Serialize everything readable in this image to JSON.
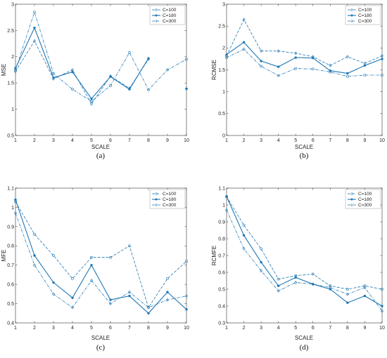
{
  "chart_data": [
    {
      "type": "line",
      "panel_label": "(a)",
      "xlabel": "SCALE",
      "ylabel": "MSE",
      "xlim": [
        1,
        10
      ],
      "ylim": [
        0.5,
        3
      ],
      "yticks": [
        "0.5",
        "1",
        "1.5",
        "2",
        "2.5",
        "3"
      ],
      "xticks": [
        "1",
        "2",
        "3",
        "4",
        "5",
        "6",
        "7",
        "8",
        "9",
        "10"
      ],
      "legend": "top-right",
      "series": [
        {
          "name": "C=100",
          "style": "dashdot",
          "x": [
            1,
            2,
            3,
            4,
            5,
            6,
            7,
            8,
            9,
            10
          ],
          "y": [
            1.75,
            2.85,
            1.68,
            1.38,
            1.15,
            1.45,
            2.08,
            1.37,
            1.75,
            1.95
          ]
        },
        {
          "name": "C=180",
          "style": "solid",
          "x": [
            1,
            2,
            3,
            4,
            5,
            6,
            7,
            8,
            9,
            10
          ],
          "y": [
            1.78,
            2.55,
            1.6,
            1.71,
            1.2,
            1.62,
            1.38,
            1.97,
            null,
            1.39
          ]
        },
        {
          "name": "C=300",
          "style": "dashed",
          "x": [
            1,
            2,
            3,
            4,
            5,
            6,
            7,
            8,
            9,
            10
          ],
          "y": [
            1.72,
            2.3,
            1.58,
            1.75,
            1.1,
            1.63,
            1.4,
            1.95,
            null,
            1.39
          ]
        }
      ]
    },
    {
      "type": "line",
      "panel_label": "(b)",
      "xlabel": "SCALE",
      "ylabel": "RCMSE",
      "xlim": [
        1,
        10
      ],
      "ylim": [
        0,
        3
      ],
      "yticks": [
        "0",
        "0.5",
        "1",
        "1.5",
        "2",
        "2.5",
        "3"
      ],
      "xticks": [
        "1",
        "2",
        "3",
        "4",
        "5",
        "6",
        "7",
        "8",
        "9",
        "10"
      ],
      "legend": "top-right",
      "series": [
        {
          "name": "C=100",
          "style": "dashdot",
          "x": [
            1,
            2,
            3,
            4,
            5,
            6,
            7,
            8,
            9,
            10
          ],
          "y": [
            1.78,
            1.97,
            1.58,
            1.37,
            1.53,
            1.52,
            1.45,
            1.35,
            1.38,
            1.38
          ]
        },
        {
          "name": "C=180",
          "style": "solid",
          "x": [
            1,
            2,
            3,
            4,
            5,
            6,
            7,
            8,
            9,
            10
          ],
          "y": [
            1.85,
            2.13,
            1.7,
            1.57,
            1.78,
            1.77,
            1.48,
            1.42,
            1.6,
            1.75
          ]
        },
        {
          "name": "C=300",
          "style": "dashed",
          "x": [
            1,
            2,
            3,
            4,
            5,
            6,
            7,
            8,
            9,
            10
          ],
          "y": [
            1.82,
            2.65,
            1.93,
            1.93,
            1.88,
            1.8,
            1.6,
            1.8,
            1.65,
            1.82
          ]
        }
      ]
    },
    {
      "type": "line",
      "panel_label": "(c)",
      "xlabel": "SCALE",
      "ylabel": "MFE",
      "xlim": [
        1,
        10
      ],
      "ylim": [
        0.4,
        1.1
      ],
      "yticks": [
        "0.4",
        "0.5",
        "0.6",
        "0.7",
        "0.8",
        "0.9",
        "1",
        "1.1"
      ],
      "xticks": [
        "1",
        "2",
        "3",
        "4",
        "5",
        "6",
        "7",
        "8",
        "9",
        "10"
      ],
      "legend": "top-right",
      "series": [
        {
          "name": "C=100",
          "style": "dashed",
          "x": [
            1,
            2,
            3,
            4,
            5,
            6,
            7,
            8,
            9,
            10
          ],
          "y": [
            1.03,
            0.86,
            0.75,
            0.63,
            0.74,
            0.74,
            0.8,
            0.48,
            0.63,
            0.72
          ]
        },
        {
          "name": "C=180",
          "style": "solid",
          "x": [
            1,
            2,
            3,
            4,
            5,
            6,
            7,
            8,
            9,
            10
          ],
          "y": [
            1.04,
            0.75,
            0.61,
            0.53,
            0.7,
            0.52,
            0.54,
            0.45,
            0.56,
            0.47
          ]
        },
        {
          "name": "C=300",
          "style": "dashdot",
          "x": [
            1,
            2,
            3,
            4,
            5,
            6,
            7,
            8,
            9,
            10
          ],
          "y": [
            0.97,
            0.7,
            0.55,
            0.48,
            0.62,
            0.5,
            0.56,
            0.48,
            0.52,
            0.54
          ]
        }
      ]
    },
    {
      "type": "line",
      "panel_label": "(d)",
      "xlabel": "SCALE",
      "ylabel": "RCMFE",
      "xlim": [
        1,
        10
      ],
      "ylim": [
        0.3,
        1.1
      ],
      "yticks": [
        "0.3",
        "0.4",
        "0.5",
        "0.6",
        "0.7",
        "0.8",
        "0.9",
        "1",
        "1.1"
      ],
      "xticks": [
        "1",
        "2",
        "3",
        "4",
        "5",
        "6",
        "7",
        "8",
        "9",
        "10"
      ],
      "legend": "top-right",
      "series": [
        {
          "name": "C=100",
          "style": "dashed",
          "x": [
            1,
            2,
            3,
            4,
            5,
            6,
            7,
            8,
            9,
            10
          ],
          "y": [
            1.05,
            0.88,
            0.74,
            0.56,
            0.58,
            0.59,
            0.52,
            0.5,
            0.52,
            0.5
          ]
        },
        {
          "name": "C=180",
          "style": "solid",
          "x": [
            1,
            2,
            3,
            4,
            5,
            6,
            7,
            8,
            9,
            10
          ],
          "y": [
            1.05,
            0.82,
            0.66,
            0.52,
            0.57,
            0.53,
            0.5,
            0.42,
            0.46,
            0.4
          ]
        },
        {
          "name": "C=300",
          "style": "dashdot",
          "x": [
            1,
            2,
            3,
            4,
            5,
            6,
            7,
            8,
            9,
            10
          ],
          "y": [
            0.97,
            0.74,
            0.61,
            0.49,
            0.54,
            0.53,
            0.51,
            0.47,
            0.51,
            0.37
          ]
        }
      ]
    }
  ],
  "colors": {
    "series_a": "#1f77b4",
    "series_b": "#1f77b4",
    "series_c": "#1f77b4",
    "axis": "#222222",
    "box": "#333333"
  }
}
